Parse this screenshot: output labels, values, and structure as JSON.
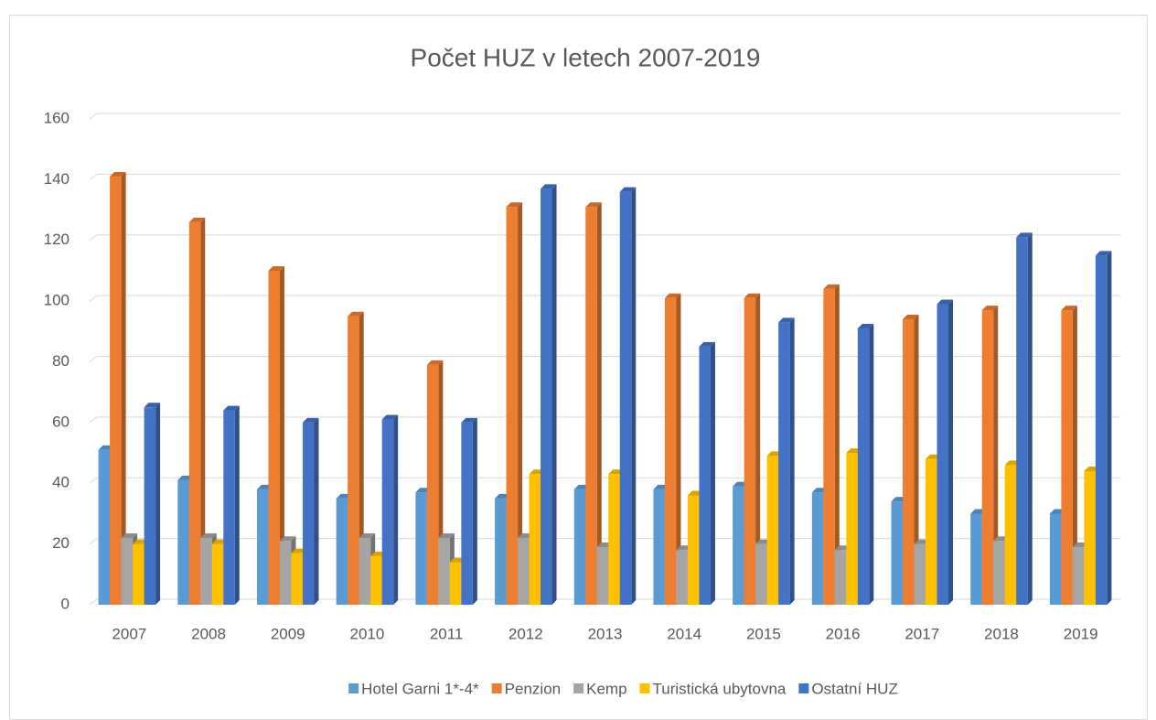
{
  "chart_data": {
    "type": "bar",
    "title": "Počet HUZ v letech 2007-2019",
    "categories": [
      "2007",
      "2008",
      "2009",
      "2010",
      "2011",
      "2012",
      "2013",
      "2014",
      "2015",
      "2016",
      "2017",
      "2018",
      "2019"
    ],
    "series": [
      {
        "name": "Hotel Garni 1*-4*",
        "color": "#5b9bd5",
        "values": [
          51,
          41,
          38,
          35,
          37,
          35,
          38,
          38,
          39,
          37,
          34,
          30,
          30
        ]
      },
      {
        "name": "Penzion",
        "color": "#ed7d31",
        "values": [
          141,
          126,
          110,
          95,
          79,
          131,
          131,
          101,
          101,
          104,
          94,
          97,
          97
        ]
      },
      {
        "name": "Kemp",
        "color": "#a5a5a5",
        "values": [
          22,
          22,
          21,
          22,
          22,
          22,
          19,
          18,
          20,
          18,
          20,
          21,
          19
        ]
      },
      {
        "name": "Turistická ubytovna",
        "color": "#ffc000",
        "values": [
          20,
          20,
          17,
          16,
          14,
          43,
          43,
          36,
          49,
          50,
          48,
          46,
          44
        ]
      },
      {
        "name": "Ostatní HUZ",
        "color": "#4472c4",
        "values": [
          65,
          64,
          60,
          61,
          60,
          137,
          136,
          85,
          93,
          91,
          99,
          121,
          115
        ]
      }
    ],
    "ylim": [
      0,
      160
    ],
    "yticks": [
      0,
      20,
      40,
      60,
      80,
      100,
      120,
      140,
      160
    ],
    "grid": true,
    "legend": "bottom"
  }
}
